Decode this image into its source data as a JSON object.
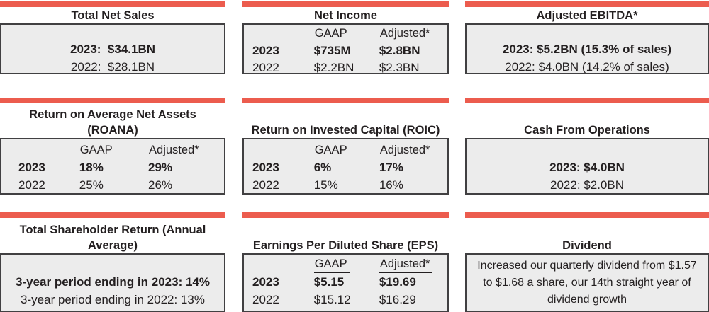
{
  "colors": {
    "accent": "#ec5c4e",
    "box_bg": "#ececec",
    "box_border": "#414042",
    "text": "#231f20"
  },
  "panels": [
    {
      "id": "total-net-sales",
      "title": "Total Net Sales",
      "line1": "2023:  $34.1BN",
      "line2": "2022:  $28.1BN"
    },
    {
      "id": "net-income",
      "title": "Net Income",
      "headers": {
        "col1": "GAAP",
        "col2": "Adjusted*"
      },
      "rows": [
        {
          "year": "2023",
          "gaap": "$735M",
          "adjusted": "$2.8BN"
        },
        {
          "year": "2022",
          "gaap": "$2.2BN",
          "adjusted": "$2.3BN"
        }
      ]
    },
    {
      "id": "adjusted-ebitda",
      "title": "Adjusted EBITDA*",
      "line1": "2023: $5.2BN (15.3% of sales)",
      "line2": "2022: $4.0BN (14.2% of sales)"
    },
    {
      "id": "roana",
      "title": "Return on Average Net Assets (ROANA)",
      "headers": {
        "col1": "GAAP",
        "col2": "Adjusted*"
      },
      "rows": [
        {
          "year": "2023",
          "gaap": "18%",
          "adjusted": "29%"
        },
        {
          "year": "2022",
          "gaap": "25%",
          "adjusted": "26%"
        }
      ]
    },
    {
      "id": "roic",
      "title": "Return on Invested Capital (ROIC)",
      "headers": {
        "col1": "GAAP",
        "col2": "Adjusted*"
      },
      "rows": [
        {
          "year": "2023",
          "gaap": "6%",
          "adjusted": "17%"
        },
        {
          "year": "2022",
          "gaap": "15%",
          "adjusted": "16%"
        }
      ]
    },
    {
      "id": "cash-from-operations",
      "title": "Cash From Operations",
      "line1": "2023: $4.0BN",
      "line2": "2022: $2.0BN"
    },
    {
      "id": "total-shareholder-return",
      "title": "Total Shareholder Return (Annual Average)",
      "line1": "3-year period ending in 2023: 14%",
      "line2": "3-year period ending in 2022: 13%"
    },
    {
      "id": "eps",
      "title": "Earnings Per Diluted Share (EPS)",
      "headers": {
        "col1": "GAAP",
        "col2": "Adjusted*"
      },
      "rows": [
        {
          "year": "2023",
          "gaap": "$5.15",
          "adjusted": "$19.69"
        },
        {
          "year": "2022",
          "gaap": "$15.12",
          "adjusted": "$16.29"
        }
      ]
    },
    {
      "id": "dividend",
      "title": "Dividend",
      "text": "Increased our quarterly dividend from $1.57 to $1.68 a share, our 14th straight year of dividend growth"
    }
  ]
}
